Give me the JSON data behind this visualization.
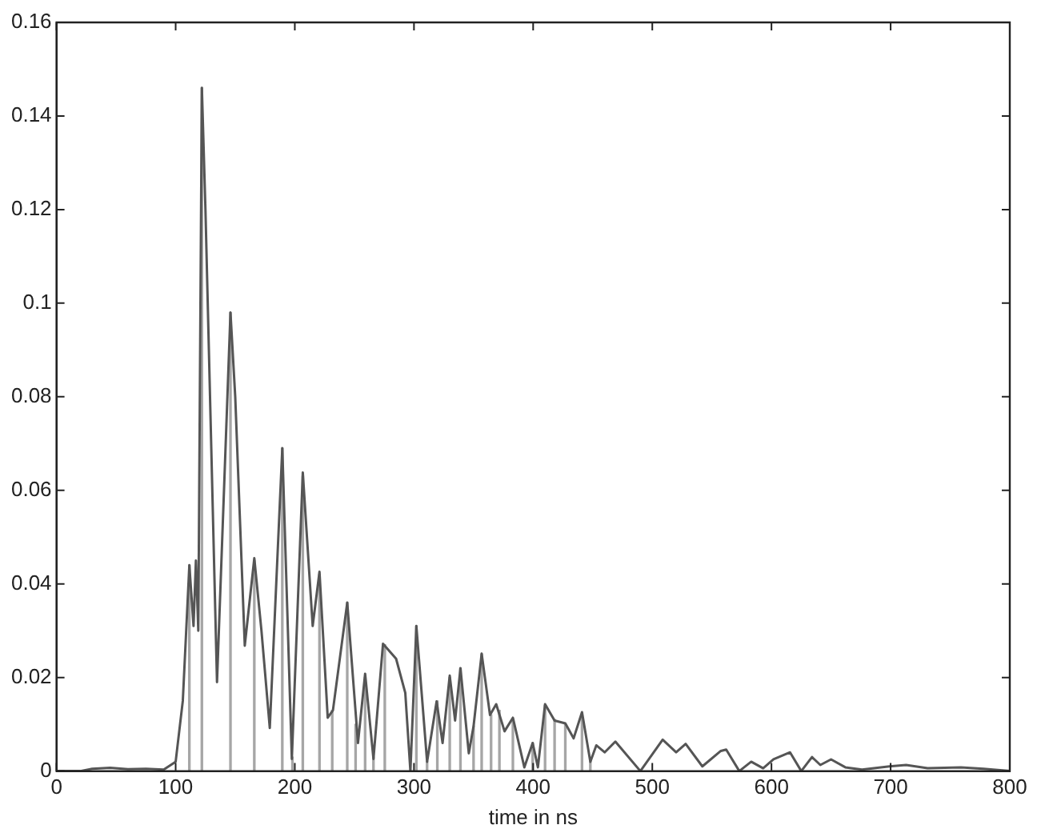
{
  "chart_data": {
    "type": "line",
    "xlabel": "time in ns",
    "xlim": [
      0,
      800
    ],
    "xticks": [
      0,
      100,
      200,
      300,
      400,
      500,
      600,
      700,
      800
    ],
    "ylim": [
      0,
      0.16
    ],
    "yticks": [
      0,
      0.02,
      0.04,
      0.06,
      0.08,
      0.1,
      0.12,
      0.14,
      0.16
    ],
    "grid": false,
    "legend": false,
    "marker": "none",
    "line_style": "solid",
    "series": [
      {
        "type": "bar",
        "color": "#a6a6a6",
        "x": [
          111.5,
          122,
          146,
          166,
          189.5,
          198,
          206.7,
          220.7,
          231.4,
          244,
          251,
          259,
          266,
          275.5,
          302,
          311,
          319.6,
          330,
          339,
          350,
          356.8,
          364.7,
          371.7,
          383,
          399.6,
          410,
          418,
          427,
          441,
          448
        ],
        "values": [
          0.044,
          0.146,
          0.098,
          0.045,
          0.069,
          0.003,
          0.063,
          0.042,
          0.013,
          0.036,
          0.01,
          0.02,
          0.003,
          0.027,
          0.031,
          0.002,
          0.015,
          0.02,
          0.022,
          0.0096,
          0.025,
          0.012,
          0.013,
          0.011,
          0.006,
          0.014,
          0.011,
          0.01,
          0.012,
          0.002
        ]
      },
      {
        "color": "#555555",
        "x": [
          0,
          20,
          30,
          45,
          60,
          75,
          90,
          100,
          106,
          111.5,
          115,
          117,
          119,
          122,
          125,
          134.7,
          146,
          150,
          158,
          166,
          172,
          179,
          189.5,
          197.5,
          206.7,
          215,
          220.7,
          227.6,
          232,
          244,
          253,
          259,
          266,
          274,
          285,
          292.7,
          297,
          302,
          311,
          319,
          324,
          330,
          334.5,
          339,
          346,
          350,
          356.8,
          363.8,
          369,
          376,
          383,
          392.6,
          399.6,
          404,
          410,
          418,
          427,
          434,
          441,
          448,
          453,
          460,
          469,
          490,
          508.7,
          520,
          528,
          542,
          557.5,
          562,
          573,
          583,
          593,
          601.7,
          615.6,
          625,
          634,
          641,
          650,
          662,
          676,
          699,
          713,
          731,
          759,
          778,
          800
        ],
        "values": [
          0,
          0,
          0.0005,
          0.0007,
          0.0004,
          0.0005,
          0.0003,
          0.002,
          0.015,
          0.044,
          0.031,
          0.045,
          0.03,
          0.146,
          0.12,
          0.019,
          0.098,
          0.08,
          0.0268,
          0.0455,
          0.03,
          0.0092,
          0.069,
          0.0026,
          0.0638,
          0.031,
          0.0426,
          0.0114,
          0.013,
          0.036,
          0.006,
          0.0208,
          0.0026,
          0.0272,
          0.024,
          0.0167,
          0,
          0.031,
          0.002,
          0.0149,
          0.006,
          0.0204,
          0.0108,
          0.022,
          0.0038,
          0.0096,
          0.0251,
          0.012,
          0.0143,
          0.0085,
          0.0114,
          0.0008,
          0.006,
          0.0008,
          0.0143,
          0.0108,
          0.0102,
          0.007,
          0.0126,
          0.002,
          0.0055,
          0.004,
          0.0063,
          0,
          0.0067,
          0.004,
          0.0058,
          0.001,
          0.0043,
          0.0046,
          0,
          0.002,
          0.0006,
          0.0025,
          0.004,
          0,
          0.003,
          0.0013,
          0.0025,
          0.0008,
          0.0003,
          0.001,
          0.0013,
          0.0006,
          0.0008,
          0.0005,
          0
        ]
      }
    ]
  }
}
